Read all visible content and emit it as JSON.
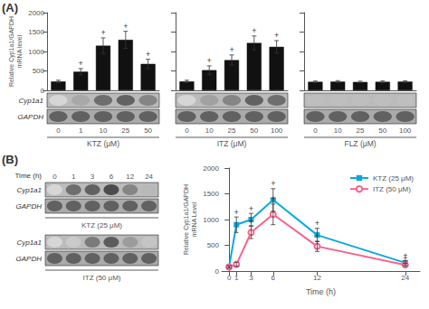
{
  "chart_data": [
    {
      "type": "bar",
      "title": "(A)",
      "categories": [
        "0",
        "1",
        "10",
        "25",
        "50"
      ],
      "values": [
        230,
        480,
        1150,
        1300,
        680
      ],
      "errors": [
        30,
        80,
        200,
        220,
        120
      ],
      "annotations": [
        null,
        "+",
        "+",
        "+",
        "+"
      ],
      "color": "#111111",
      "xlabel": "KTZ (μM)",
      "ylabel": "Relative Cyp1a1/GAPDH\nmRNA level",
      "ylim": [
        0,
        2000
      ],
      "yticks": [
        0,
        500,
        1000,
        1500,
        2000
      ],
      "grid": false,
      "blots": [
        {
          "name": "Cyp1a1",
          "values": [
            0.15,
            0.35,
            0.6,
            0.65,
            0.5
          ],
          "color": "#bbbbbb"
        },
        {
          "name": "GAPDH",
          "values": [
            0.65,
            0.65,
            0.65,
            0.65,
            0.65
          ],
          "color": "#aaaaaa"
        }
      ]
    },
    {
      "type": "bar",
      "categories": [
        "0",
        "10",
        "25",
        "50",
        "100"
      ],
      "values": [
        230,
        520,
        780,
        1220,
        1120
      ],
      "errors": [
        30,
        110,
        130,
        180,
        160
      ],
      "annotations": [
        null,
        "+",
        "+",
        "+",
        "+"
      ],
      "color": "#111111",
      "xlabel": "ITZ (μM)",
      "ylim": [
        0,
        2000
      ],
      "yticks": [
        0,
        500,
        1000,
        1500,
        2000
      ],
      "grid": false,
      "tick_labels": "x",
      "blots": [
        {
          "values": [
            0.15,
            0.38,
            0.5,
            0.65,
            0.6
          ],
          "color": "#bbbbbb"
        },
        {
          "values": [
            0.65,
            0.65,
            0.65,
            0.65,
            0.65
          ],
          "color": "#aaaaaa"
        }
      ]
    },
    {
      "type": "bar",
      "categories": [
        "0",
        "10",
        "25",
        "50",
        "100"
      ],
      "values": [
        220,
        225,
        215,
        220,
        225
      ],
      "errors": [
        20,
        25,
        20,
        22,
        22
      ],
      "annotations": [
        null,
        null,
        null,
        null,
        null
      ],
      "color": "#111111",
      "xlabel": "FLZ (μM)",
      "ylim": [
        0,
        2000
      ],
      "yticks": [
        0,
        500,
        1000,
        1500,
        2000
      ],
      "grid": false,
      "tick_labels": "x",
      "blots": [
        {
          "values": [
            0.25,
            0.25,
            0.25,
            0.25,
            0.25
          ],
          "color": "#bbbbbb"
        },
        {
          "values": [
            0.65,
            0.65,
            0.65,
            0.65,
            0.65
          ],
          "color": "#aaaaaa"
        }
      ]
    },
    {
      "type": "blot",
      "title": "(B)",
      "xlabel": "Time (h)",
      "categories": [
        "0",
        "1",
        "3",
        "6",
        "12",
        "24"
      ],
      "series": [
        {
          "name": "KTZ (25 μM)",
          "blots": [
            {
              "name": "Cyp1a1",
              "values": [
                0.15,
                0.6,
                0.65,
                0.75,
                0.5,
                0.28
              ],
              "color": "#bbbbbb"
            },
            {
              "name": "GAPDH",
              "values": [
                0.65,
                0.65,
                0.65,
                0.65,
                0.65,
                0.65
              ],
              "color": "#aaaaaa"
            }
          ]
        },
        {
          "name": "ITZ (50 μM)",
          "blots": [
            {
              "name": "Cyp1a1",
              "values": [
                0.15,
                0.2,
                0.55,
                0.68,
                0.4,
                0.22
              ],
              "color": "#bbbbbb"
            },
            {
              "name": "GAPDH",
              "values": [
                0.65,
                0.65,
                0.65,
                0.65,
                0.65,
                0.65
              ],
              "color": "#aaaaaa"
            }
          ]
        }
      ]
    },
    {
      "type": "line",
      "x": [
        0,
        1,
        3,
        6,
        12,
        24
      ],
      "xlim": [
        -1,
        26
      ],
      "xticks": [
        0,
        1,
        3,
        6,
        12,
        24
      ],
      "ylim": [
        0,
        2000
      ],
      "yticks": [
        0,
        500,
        1000,
        1500,
        2000
      ],
      "xlabel": "Time (h)",
      "ylabel": "Relative Cyp1a1/GAPDH\nmRNA Level",
      "legend": "upper right",
      "grid": false,
      "series": [
        {
          "name": "KTZ (25 μM)",
          "values": [
            80,
            900,
            1000,
            1380,
            700,
            160
          ],
          "errors": [
            20,
            150,
            120,
            220,
            130,
            40
          ],
          "annotations": [
            null,
            "+",
            "+",
            "+",
            "+",
            "+"
          ],
          "marker": "square"
        },
        {
          "name": "ITZ (50 μM)",
          "values": [
            80,
            130,
            750,
            1100,
            480,
            120
          ],
          "errors": [
            20,
            40,
            120,
            200,
            100,
            30
          ],
          "annotations": [
            null,
            null,
            "+",
            "+",
            "+",
            "+"
          ],
          "marker": "circle"
        }
      ]
    }
  ]
}
